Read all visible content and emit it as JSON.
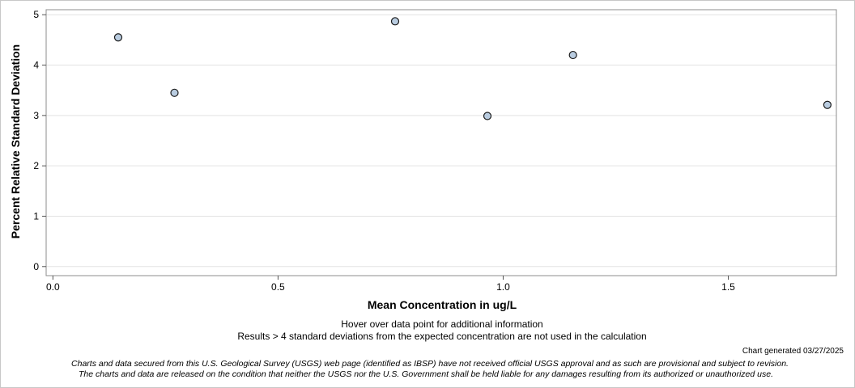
{
  "chart_data": {
    "type": "scatter",
    "xlabel": "Mean Concentration in ug/L",
    "ylabel": "Percent Relative Standard Deviation",
    "xlim": [
      -0.015,
      1.74
    ],
    "ylim": [
      -0.18,
      5.1
    ],
    "x_ticks": [
      0.0,
      0.5,
      1.0,
      1.5
    ],
    "x_tick_labels": [
      "0.0",
      "0.5",
      "1.0",
      "1.5"
    ],
    "y_ticks": [
      0,
      1,
      2,
      3,
      4,
      5
    ],
    "y_tick_labels": [
      "0",
      "1",
      "2",
      "3",
      "4",
      "5"
    ],
    "grid": true,
    "points": [
      {
        "x": 0.145,
        "y": 4.55
      },
      {
        "x": 0.27,
        "y": 3.45
      },
      {
        "x": 0.76,
        "y": 4.87
      },
      {
        "x": 0.965,
        "y": 2.99
      },
      {
        "x": 1.155,
        "y": 4.2
      },
      {
        "x": 1.72,
        "y": 3.21
      }
    ],
    "marker_fill": "#b9cce0",
    "marker_stroke": "#1a1a1a"
  },
  "notes": {
    "hover": "Hover over data point for additional information",
    "results": "Results > 4 standard deviations from the expected concentration are not used in the calculation"
  },
  "generated": "Chart generated 03/27/2025",
  "disclaimer": {
    "line1": "Charts and data secured from this U.S. Geological Survey (USGS) web page (identified as IBSP) have not received official USGS approval and as such are provisional and subject to revision.",
    "line2": "The charts and data are released on the condition that neither the USGS nor the U.S. Government shall be held liable for any damages resulting from its authorized or unauthorized use."
  }
}
